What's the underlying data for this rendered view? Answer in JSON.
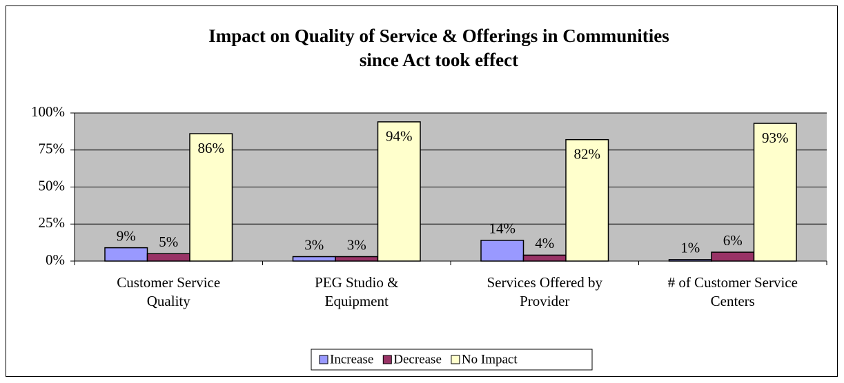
{
  "chart_data": {
    "type": "bar",
    "title": [
      "Impact on Quality of Service & Offerings in Communities",
      "since Act took effect"
    ],
    "categories": [
      [
        "Customer Service",
        "Quality"
      ],
      [
        "PEG Studio &",
        "Equipment"
      ],
      [
        "Services Offered by",
        "Provider"
      ],
      [
        "# of Customer Service",
        "Centers"
      ]
    ],
    "series": [
      {
        "name": "Increase",
        "color": "#9999ff",
        "values": [
          9,
          3,
          14,
          1
        ],
        "value_labels": [
          "9%",
          "3%",
          "14%",
          "1%"
        ]
      },
      {
        "name": "Decrease",
        "color": "#993366",
        "values": [
          5,
          3,
          4,
          6
        ],
        "value_labels": [
          "5%",
          "3%",
          "4%",
          "6%"
        ]
      },
      {
        "name": "No Impact",
        "color": "#ffffcc",
        "values": [
          86,
          94,
          82,
          93
        ],
        "value_labels": [
          "86%",
          "94%",
          "82%",
          "93%"
        ]
      }
    ],
    "ylim": [
      0,
      100
    ],
    "yticks": [
      {
        "value": 0,
        "label": "0%"
      },
      {
        "value": 25,
        "label": "25%"
      },
      {
        "value": 50,
        "label": "50%"
      },
      {
        "value": 75,
        "label": "75%"
      },
      {
        "value": 100,
        "label": "100%"
      }
    ],
    "grid": true,
    "legend": "bottom"
  }
}
